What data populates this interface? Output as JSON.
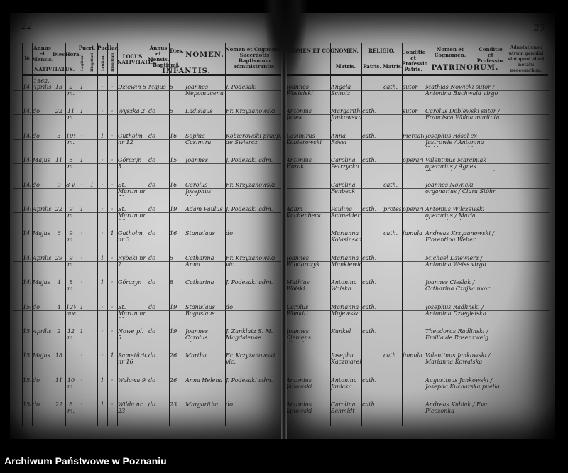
{
  "left_page": {
    "page_number": "22",
    "headers": {
      "no": "№",
      "annus_mensis": "Annus et Mensis.",
      "dies": "Dies.",
      "hora": "Hora.",
      "nativitatus": "NATIVITATUS.",
      "pueri": "Pueri.",
      "puellae": "Puellae.",
      "legitimi": "Legitimi",
      "illegitimi": "Illegitimi",
      "locus": "LOCUS NATIVITATIS.",
      "bapt_annus": "Annus et Mensis.",
      "bapt_dies": "Dies.",
      "baptismi": "Baptismi.",
      "nomen": "NOMEN.",
      "infantis": "INFANTIS.",
      "sacerdos": "Nomen et Cognomen Sacerdotis Baptismum administrantis."
    },
    "year": "1862.",
    "rows": [
      {
        "no": "141.",
        "month": "Aprilis",
        "day": "13",
        "hour": "2 m.",
        "pl": "1",
        "pi": "·",
        "fl": "·",
        "fi": "·",
        "locus": "Dziewin 5",
        "bmonth": "Majus",
        "bday": "5",
        "nomen": "Joannes Nepomucenus",
        "sacerdos": "J. Podesaki"
      },
      {
        "no": "142.",
        "month": "do",
        "day": "22",
        "hour": "11 m.",
        "pl": "1",
        "pi": "·",
        "fl": "·",
        "fi": "·",
        "locus": "Wyszka 2",
        "bmonth": "do",
        "bday": "5",
        "nomen": "Ladislaus",
        "sacerdos": "Fr. Krzyżanowski"
      },
      {
        "no": "143.",
        "month": "do",
        "day": "3",
        "hour": "10½ m.",
        "pl": "·",
        "pi": "·",
        "fl": "1",
        "fi": "·",
        "locus": "Gutholm nr 12",
        "bmonth": "do",
        "bday": "16",
        "nomen": "Sophia Casimira",
        "sacerdos": "Kobierowski praep. de Swiercz"
      },
      {
        "no": "144.",
        "month": "Majus",
        "day": "11",
        "hour": "5 m.",
        "pl": "1",
        "pi": "·",
        "fl": "·",
        "fi": "·",
        "locus": "Górczyn 5",
        "bmonth": "do",
        "bday": "15",
        "nomen": "Joannes",
        "sacerdos": "J. Podesaki adm."
      },
      {
        "no": "145.",
        "month": "do",
        "day": "9",
        "hour": "8 v.",
        "pl": "·",
        "pi": "1",
        "fl": "·",
        "fi": "·",
        "locus": "St. Martin nr 41",
        "bmonth": "do",
        "bday": "16",
        "nomen": "Carolus Josephus Alphonsus",
        "sacerdos": "Fr. Krzyżanowski"
      },
      {
        "no": "146.",
        "month": "Aprilis",
        "day": "22",
        "hour": "9 m.",
        "pl": "1",
        "pi": "·",
        "fl": "·",
        "fi": "·",
        "locus": "St. Martin nr 66",
        "bmonth": "do",
        "bday": "19",
        "nomen": "Adam Paulus",
        "sacerdos": "J. Podesaki adm."
      },
      {
        "no": "147.",
        "month": "Majus",
        "day": "6",
        "hour": "9 m.",
        "pl": "·",
        "pi": "·",
        "fl": "·",
        "fi": "1",
        "locus": "Gutholm nr 3",
        "bmonth": "do",
        "bday": "16",
        "nomen": "Stanislaus",
        "sacerdos": "do"
      },
      {
        "no": "148.",
        "month": "Aprilis",
        "day": "29",
        "hour": "9 m.",
        "pl": "·",
        "pi": "·",
        "fl": "1",
        "fi": "·",
        "locus": "Rybaki nr 7",
        "bmonth": "do",
        "bday": "5",
        "nomen": "Catharina Anna",
        "sacerdos": "Fr. Krzyżanowski vic."
      },
      {
        "no": "149.",
        "month": "Majus",
        "day": "4",
        "hour": "8 m.",
        "pl": "·",
        "pi": "·",
        "fl": "1",
        "fi": "·",
        "locus": "Górczyn",
        "bmonth": "do",
        "bday": "8",
        "nomen": "Catharina",
        "sacerdos": "J. Podesaki adm."
      },
      {
        "no": "150.",
        "month": "do",
        "day": "4",
        "hour": "12½ noct.",
        "pl": "1",
        "pi": "·",
        "fl": "·",
        "fi": "·",
        "locus": "St. Martin nr 61",
        "bmonth": "do",
        "bday": "19",
        "nomen": "Stanislaus Boguslaus",
        "sacerdos": "do"
      },
      {
        "no": "151.",
        "month": "Aprilis",
        "day": "2",
        "hour": "12 m.",
        "pl": "1",
        "pi": "·",
        "fl": "·",
        "fi": "·",
        "locus": "Nowe pl. 5",
        "bmonth": "do",
        "bday": "19",
        "nomen": "Joannes Carolus Clemens Theodorus",
        "sacerdos": "J. Zanklatz S. M. Magdalenae"
      },
      {
        "no": "152.",
        "month": "Majus",
        "day": "18",
        "hour": "",
        "pl": "·",
        "pi": "·",
        "fl": "·",
        "fi": "1",
        "locus": "Sametürion nr 16",
        "bmonth": "do",
        "bday": "26",
        "nomen": "Martha",
        "sacerdos": "Fr. Krzyżanowski vic."
      },
      {
        "no": "153.",
        "month": "do",
        "day": "11",
        "hour": "10 m.",
        "pl": "·",
        "pi": "·",
        "fl": "1",
        "fi": "·",
        "locus": "Wałowa 9",
        "bmonth": "do",
        "bday": "26",
        "nomen": "Anna Helena",
        "sacerdos": "J. Podesaki adm."
      },
      {
        "no": "154.",
        "month": "do",
        "day": "22",
        "hour": "8 m.",
        "pl": "·",
        "pi": "·",
        "fl": "1",
        "fi": "·",
        "locus": "Wilda nr 23",
        "bmonth": "do",
        "bday": "23",
        "nomen": "Margaritha",
        "sacerdos": "do"
      }
    ]
  },
  "right_page": {
    "page_number": "23",
    "headers": {
      "parentes": "NOMEN ET COGNOMEN.",
      "matris": "Matris.",
      "religio": "RELIGIO.",
      "rel_patris": "Patris.",
      "rel_matris": "Matris.",
      "conditio_patris": "Conditio et Professio Patris.",
      "patrini_nomen": "Nomen et Cognomen.",
      "patrini_conditio": "Conditio et Professio.",
      "patrinorum": "PATRINORUM.",
      "adnotationes": "Adnotationes utrum genuini sint quod aliud notatu necessarium."
    },
    "rows": [
      {
        "pater": "Joannes Wasielski",
        "mater": "Angela Schulz",
        "rp": "",
        "rm": "cath.",
        "cond": "sutor",
        "patrini": "Mathias Nowicki sutor / Antonina Buchwald virgo",
        "pcond": ""
      },
      {
        "pater": "Antonius Janek",
        "mater": "Margaritha Jankowska",
        "rp": "cath.",
        "rm": "",
        "cond": "sutor",
        "patrini": "Carolus Doblewski sutor / Francisca Wolna maritata",
        "pcond": ""
      },
      {
        "pater": "Casimirus Kobierowski",
        "mater": "Anna Rösel",
        "rp": "cath.",
        "rm": "",
        "cond": "mercator",
        "patrini": "Josephus Rösel ex Jastrowie / Antonina Kobierowska vidua",
        "pcond": ""
      },
      {
        "pater": "Antonius Horak",
        "mater": "Carolina Petrzycka",
        "rp": "cath.",
        "rm": "",
        "cond": "operarius",
        "patrini": "Valentinus Marciniak operarius / Agnes Zborowska uxor operarii",
        "pcond": ""
      },
      {
        "pater": "",
        "mater": "Carolina Fenbeck",
        "rp": "",
        "rm": "cath.",
        "cond": "",
        "patrini": "Joannes Nowicki organarius / Clara Stöhr puella",
        "pcond": ""
      },
      {
        "pater": "Adam Kuchenbeck",
        "mater": "Paulina Schneider",
        "rp": "cath.",
        "rm": "protest.",
        "cond": "operarius",
        "patrini": "Antonius Wilczewski operarius / Maria Lewandowska",
        "pcond": ""
      },
      {
        "pater": "",
        "mater": "Marianna Kolasinska",
        "rp": "",
        "rm": "cath.",
        "cond": "famula",
        "patrini": "Andreas Krzyżanowski / Florentina Weber",
        "pcond": ""
      },
      {
        "pater": "Joannes Wlodarczyk",
        "mater": "Marianna Mankiewicz",
        "rp": "cath.",
        "rm": "",
        "cond": "",
        "patrini": "Michael Dziewierz / Antonina Weiss virgo",
        "pcond": ""
      },
      {
        "pater": "Mathias Wolski",
        "mater": "Antonina Wolska",
        "rp": "cath.",
        "rm": "",
        "cond": "",
        "patrini": "Joannes Cieślak / Catharina Czajka uxor",
        "pcond": ""
      },
      {
        "pater": "Carolus Wonkitt",
        "mater": "Marianna Mojewska",
        "rp": "cath.",
        "rm": "",
        "cond": "",
        "patrini": "Josephus Radlinski / Antonina Dzięgielska",
        "pcond": ""
      },
      {
        "pater": "Joannes Clemens Theodorus",
        "mater": "Kunkel",
        "rp": "cath.",
        "rm": "",
        "cond": "",
        "patrini": "Theodorus Radlinski / Emilia de Rosenzweig",
        "pcond": ""
      },
      {
        "pater": "",
        "mater": "Josepha Kaczmarek",
        "rp": "",
        "rm": "cath.",
        "cond": "famula",
        "patrini": "Valentinus Jankowski / Marianna Kowalska",
        "pcond": ""
      },
      {
        "pater": "Antonius Janowski",
        "mater": "Antonina Janicka",
        "rp": "cath.",
        "rm": "",
        "cond": "",
        "patrini": "Augustinus Jankowski / Josepha Kucharska puella",
        "pcond": ""
      },
      {
        "pater": "Antonius Janowski",
        "mater": "Carolina Schmidt",
        "rp": "cath.",
        "rm": "",
        "cond": "",
        "patrini": "Andreas Kubiak / Eva Pieczonka",
        "pcond": ""
      }
    ]
  },
  "footer": {
    "archive": "Archiwum Państwowe w Poznaniu"
  }
}
